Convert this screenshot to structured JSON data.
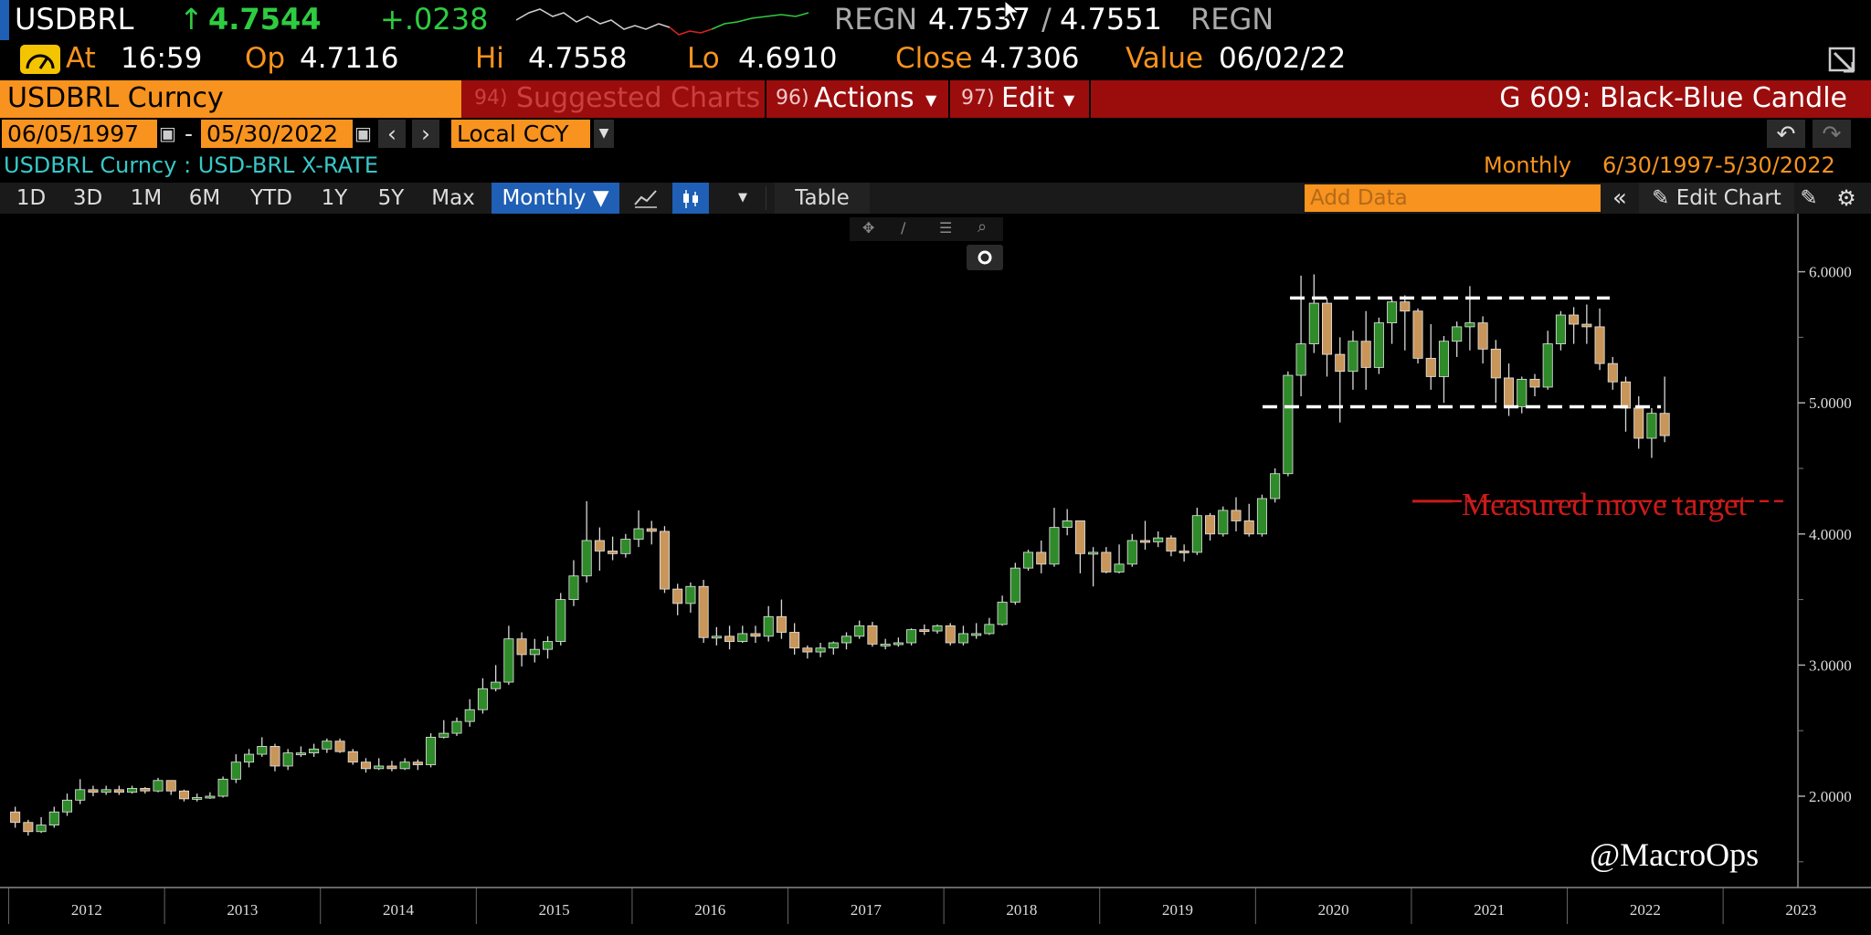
{
  "header": {
    "ticker": "USDBRL",
    "last_arrow": "↑",
    "last": "4.7544",
    "change": "+.0238",
    "bid_source": "REGN",
    "bid": "4.7537",
    "slash": "/",
    "ask": "4.7551",
    "ask_source": "REGN",
    "at_label": "At",
    "at_time": "16:59",
    "op_label": "Op",
    "op": "4.7116",
    "hi_label": "Hi",
    "hi": "4.7558",
    "lo_label": "Lo",
    "lo": "4.6910",
    "close_label": "Close",
    "close": "4.7306",
    "value_label": "Value",
    "value_date": "06/02/22"
  },
  "menu_bar": {
    "security": "USDBRL Curncy",
    "suggested_num": "94)",
    "suggested": "Suggested Charts",
    "actions_num": "96)",
    "actions": "Actions",
    "edit_num": "97)",
    "edit": "Edit",
    "chart_name": "G 609: Black-Blue Candle"
  },
  "range_bar": {
    "start_date": "06/05/1997",
    "dash": "-",
    "end_date": "05/30/2022",
    "currency": "Local CCY"
  },
  "info_bar": {
    "description": "USDBRL Curncy : USD-BRL X-RATE",
    "period": "Monthly",
    "date_range": "6/30/1997-5/30/2022"
  },
  "toolbar": {
    "periods": [
      "1D",
      "3D",
      "1M",
      "6M",
      "YTD",
      "1Y",
      "5Y",
      "Max"
    ],
    "frequency": "Monthly ▼",
    "table": "Table",
    "add_data_placeholder": "Add Data",
    "edit_chart": "Edit Chart"
  },
  "chart_annotations": {
    "target_label": "Measured move target",
    "watermark": "@MacroOps"
  },
  "colors": {
    "up_candle": "#2f8a2a",
    "down_candle": "#c8965a",
    "annotation_red": "#cc1a1a",
    "menu_red": "#9b0d0d",
    "orange": "#f7931e",
    "cyan_text": "#38c8c8",
    "selected_blue": "#1f5fb5"
  },
  "chart_data": {
    "type": "candlestick",
    "x_ticks": [
      "2012",
      "2013",
      "2014",
      "2015",
      "2016",
      "2017",
      "2018",
      "2019",
      "2020",
      "2021",
      "2022",
      "2023"
    ],
    "y_ticks": [
      "2.0000",
      "3.0000",
      "4.0000",
      "5.0000",
      "6.0000"
    ],
    "ylim": [
      1.5,
      6.2
    ],
    "resistance": 5.8,
    "support": 4.97,
    "target": 4.25,
    "candles": [
      [
        1.88,
        1.8,
        1.92,
        1.76
      ],
      [
        1.8,
        1.73,
        1.82,
        1.7
      ],
      [
        1.73,
        1.78,
        1.84,
        1.72
      ],
      [
        1.78,
        1.88,
        1.92,
        1.76
      ],
      [
        1.88,
        1.97,
        2.02,
        1.85
      ],
      [
        1.97,
        2.05,
        2.13,
        1.94
      ],
      [
        2.05,
        2.03,
        2.08,
        2.0
      ],
      [
        2.03,
        2.05,
        2.08,
        2.01
      ],
      [
        2.05,
        2.03,
        2.08,
        2.01
      ],
      [
        2.03,
        2.06,
        2.08,
        2.02
      ],
      [
        2.06,
        2.04,
        2.07,
        2.02
      ],
      [
        2.04,
        2.12,
        2.14,
        2.03
      ],
      [
        2.12,
        2.04,
        2.12,
        2.01
      ],
      [
        2.04,
        1.98,
        2.05,
        1.96
      ],
      [
        1.98,
        1.99,
        2.02,
        1.96
      ],
      [
        1.99,
        2.0,
        2.03,
        1.98
      ],
      [
        2.0,
        2.13,
        2.15,
        1.99
      ],
      [
        2.13,
        2.26,
        2.32,
        2.1
      ],
      [
        2.26,
        2.32,
        2.36,
        2.22
      ],
      [
        2.32,
        2.38,
        2.45,
        2.3
      ],
      [
        2.38,
        2.23,
        2.4,
        2.19
      ],
      [
        2.23,
        2.33,
        2.36,
        2.2
      ],
      [
        2.33,
        2.33,
        2.38,
        2.3
      ],
      [
        2.33,
        2.36,
        2.4,
        2.3
      ],
      [
        2.36,
        2.42,
        2.44,
        2.33
      ],
      [
        2.42,
        2.34,
        2.44,
        2.33
      ],
      [
        2.34,
        2.26,
        2.36,
        2.24
      ],
      [
        2.26,
        2.21,
        2.29,
        2.18
      ],
      [
        2.21,
        2.23,
        2.29,
        2.2
      ],
      [
        2.23,
        2.21,
        2.27,
        2.19
      ],
      [
        2.21,
        2.26,
        2.29,
        2.2
      ],
      [
        2.26,
        2.24,
        2.28,
        2.2
      ],
      [
        2.24,
        2.45,
        2.48,
        2.22
      ],
      [
        2.45,
        2.48,
        2.58,
        2.44
      ],
      [
        2.48,
        2.57,
        2.6,
        2.46
      ],
      [
        2.57,
        2.66,
        2.74,
        2.53
      ],
      [
        2.66,
        2.82,
        2.9,
        2.63
      ],
      [
        2.82,
        2.87,
        3.0,
        2.8
      ],
      [
        2.87,
        3.2,
        3.3,
        2.85
      ],
      [
        3.2,
        3.08,
        3.25,
        2.99
      ],
      [
        3.08,
        3.12,
        3.2,
        3.02
      ],
      [
        3.12,
        3.18,
        3.22,
        3.05
      ],
      [
        3.18,
        3.5,
        3.55,
        3.15
      ],
      [
        3.5,
        3.68,
        3.8,
        3.45
      ],
      [
        3.68,
        3.95,
        4.25,
        3.63
      ],
      [
        3.95,
        3.87,
        4.05,
        3.72
      ],
      [
        3.87,
        3.85,
        3.98,
        3.8
      ],
      [
        3.85,
        3.96,
        4.0,
        3.82
      ],
      [
        3.96,
        4.04,
        4.18,
        3.9
      ],
      [
        4.04,
        4.02,
        4.1,
        3.92
      ],
      [
        4.02,
        3.58,
        4.06,
        3.55
      ],
      [
        3.58,
        3.47,
        3.62,
        3.38
      ],
      [
        3.47,
        3.6,
        3.63,
        3.4
      ],
      [
        3.6,
        3.21,
        3.65,
        3.17
      ],
      [
        3.21,
        3.22,
        3.29,
        3.15
      ],
      [
        3.22,
        3.18,
        3.3,
        3.12
      ],
      [
        3.18,
        3.24,
        3.3,
        3.17
      ],
      [
        3.24,
        3.22,
        3.3,
        3.17
      ],
      [
        3.22,
        3.37,
        3.45,
        3.18
      ],
      [
        3.37,
        3.25,
        3.5,
        3.2
      ],
      [
        3.25,
        3.13,
        3.32,
        3.08
      ],
      [
        3.13,
        3.1,
        3.15,
        3.05
      ],
      [
        3.1,
        3.13,
        3.17,
        3.06
      ],
      [
        3.13,
        3.17,
        3.18,
        3.08
      ],
      [
        3.17,
        3.22,
        3.25,
        3.12
      ],
      [
        3.22,
        3.3,
        3.34,
        3.2
      ],
      [
        3.3,
        3.16,
        3.33,
        3.14
      ],
      [
        3.16,
        3.16,
        3.2,
        3.12
      ],
      [
        3.16,
        3.17,
        3.21,
        3.14
      ],
      [
        3.17,
        3.27,
        3.28,
        3.15
      ],
      [
        3.27,
        3.26,
        3.31,
        3.23
      ],
      [
        3.26,
        3.3,
        3.31,
        3.24
      ],
      [
        3.3,
        3.17,
        3.32,
        3.15
      ],
      [
        3.17,
        3.24,
        3.3,
        3.15
      ],
      [
        3.24,
        3.24,
        3.32,
        3.2
      ],
      [
        3.24,
        3.31,
        3.36,
        3.23
      ],
      [
        3.31,
        3.48,
        3.53,
        3.3
      ],
      [
        3.48,
        3.74,
        3.78,
        3.46
      ],
      [
        3.74,
        3.86,
        3.88,
        3.72
      ],
      [
        3.86,
        3.77,
        3.95,
        3.7
      ],
      [
        3.77,
        4.05,
        4.2,
        3.75
      ],
      [
        4.05,
        4.1,
        4.19,
        3.99
      ],
      [
        4.1,
        3.85,
        4.1,
        3.7
      ],
      [
        3.85,
        3.86,
        3.9,
        3.6
      ],
      [
        3.86,
        3.71,
        3.9,
        3.7
      ],
      [
        3.71,
        3.77,
        3.92,
        3.7
      ],
      [
        3.77,
        3.95,
        4.0,
        3.75
      ],
      [
        3.95,
        3.94,
        4.1,
        3.88
      ],
      [
        3.94,
        3.97,
        4.02,
        3.9
      ],
      [
        3.97,
        3.87,
        3.99,
        3.83
      ],
      [
        3.87,
        3.86,
        3.92,
        3.79
      ],
      [
        3.86,
        4.14,
        4.2,
        3.84
      ],
      [
        4.14,
        4.0,
        4.16,
        3.95
      ],
      [
        4.0,
        4.18,
        4.21,
        3.98
      ],
      [
        4.18,
        4.1,
        4.28,
        4.02
      ],
      [
        4.1,
        4.0,
        4.23,
        3.98
      ],
      [
        4.0,
        4.27,
        4.3,
        3.98
      ],
      [
        4.27,
        4.46,
        4.5,
        4.24
      ],
      [
        4.46,
        5.21,
        5.24,
        4.44
      ],
      [
        5.21,
        5.45,
        5.97,
        5.05
      ],
      [
        5.45,
        5.76,
        5.98,
        5.38
      ],
      [
        5.76,
        5.37,
        5.8,
        5.2
      ],
      [
        5.37,
        5.24,
        5.5,
        4.85
      ],
      [
        5.24,
        5.47,
        5.55,
        5.1
      ],
      [
        5.47,
        5.27,
        5.7,
        5.1
      ],
      [
        5.27,
        5.61,
        5.65,
        5.22
      ],
      [
        5.61,
        5.77,
        5.79,
        5.45
      ],
      [
        5.77,
        5.7,
        5.82,
        5.4
      ],
      [
        5.7,
        5.34,
        5.72,
        5.3
      ],
      [
        5.34,
        5.2,
        5.6,
        5.1
      ],
      [
        5.2,
        5.47,
        5.51,
        5.0
      ],
      [
        5.47,
        5.58,
        5.62,
        5.35
      ],
      [
        5.58,
        5.61,
        5.89,
        5.4
      ],
      [
        5.61,
        5.41,
        5.66,
        5.3
      ],
      [
        5.41,
        5.19,
        5.48,
        5.0
      ],
      [
        5.19,
        4.97,
        5.3,
        4.9
      ],
      [
        4.97,
        5.18,
        5.2,
        4.92
      ],
      [
        5.18,
        5.12,
        5.22,
        5.05
      ],
      [
        5.12,
        5.45,
        5.55,
        5.1
      ],
      [
        5.45,
        5.67,
        5.7,
        5.4
      ],
      [
        5.67,
        5.6,
        5.73,
        5.45
      ],
      [
        5.6,
        5.58,
        5.75,
        5.45
      ],
      [
        5.58,
        5.3,
        5.72,
        5.25
      ],
      [
        5.3,
        5.16,
        5.35,
        5.1
      ],
      [
        5.16,
        4.96,
        5.2,
        4.78
      ],
      [
        4.96,
        4.73,
        5.05,
        4.65
      ],
      [
        4.73,
        4.92,
        4.96,
        4.58
      ],
      [
        4.92,
        4.75,
        5.2,
        4.7
      ]
    ]
  }
}
